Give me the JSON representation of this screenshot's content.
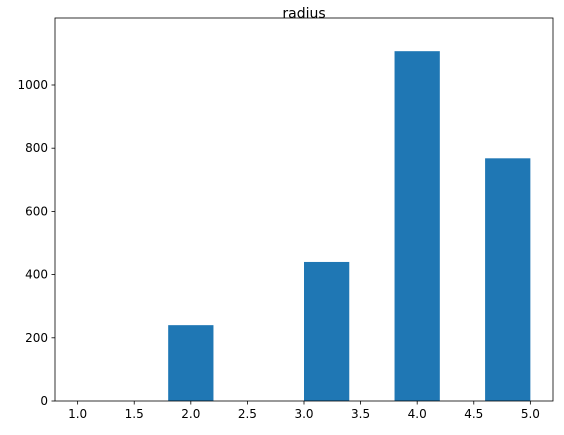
{
  "chart_data": {
    "type": "histogram",
    "title": "radius",
    "bins": [
      1.0,
      1.4,
      1.8,
      2.2,
      2.6,
      3.0,
      3.4,
      3.8,
      4.2,
      4.6,
      5.0
    ],
    "values": [
      0,
      0,
      240,
      0,
      0,
      440,
      0,
      1107,
      0,
      768
    ],
    "color": "#1f77b4",
    "xlim": [
      0.8,
      5.2
    ],
    "xticks": [
      {
        "value": 1.0,
        "label": "1.0"
      },
      {
        "value": 1.5,
        "label": "1.5"
      },
      {
        "value": 2.0,
        "label": "2.0"
      },
      {
        "value": 2.5,
        "label": "2.5"
      },
      {
        "value": 3.0,
        "label": "3.0"
      },
      {
        "value": 3.5,
        "label": "3.5"
      },
      {
        "value": 4.0,
        "label": "4.0"
      },
      {
        "value": 4.5,
        "label": "4.5"
      },
      {
        "value": 5.0,
        "label": "5.0"
      }
    ],
    "ylim": [
      0,
      1212
    ],
    "yticks": [
      0,
      200,
      400,
      600,
      800,
      1000
    ],
    "grid": false
  }
}
